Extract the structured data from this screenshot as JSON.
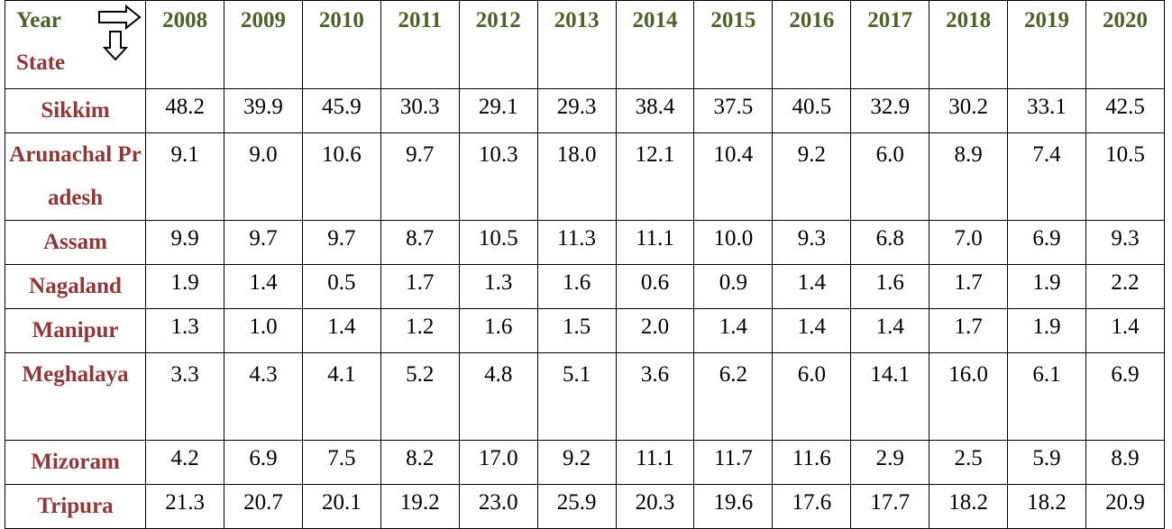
{
  "header": {
    "year_label": "Year",
    "state_label": "State",
    "right_arrow_icon": "right-arrow-icon",
    "down_arrow_icon": "down-arrow-icon"
  },
  "colors": {
    "year_text": "#4e6228",
    "state_text": "#943634",
    "value_text": "#000000"
  },
  "chart_data": {
    "type": "table",
    "title": "",
    "column_header": "Year",
    "row_header": "State",
    "columns": [
      "2008",
      "2009",
      "2010",
      "2011",
      "2012",
      "2013",
      "2014",
      "2015",
      "2016",
      "2017",
      "2018",
      "2019",
      "2020"
    ],
    "rows": [
      {
        "state": "Sikkim",
        "values": [
          "48.2",
          "39.9",
          "45.9",
          "30.3",
          "29.1",
          "29.3",
          "38.4",
          "37.5",
          "40.5",
          "32.9",
          "30.2",
          "33.1",
          "42.5"
        ]
      },
      {
        "state": "Arunachal Pradesh",
        "values": [
          "9.1",
          "9.0",
          "10.6",
          "9.7",
          "10.3",
          "18.0",
          "12.1",
          "10.4",
          "9.2",
          "6.0",
          "8.9",
          "7.4",
          "10.5"
        ]
      },
      {
        "state": "Assam",
        "values": [
          "9.9",
          "9.7",
          "9.7",
          "8.7",
          "10.5",
          "11.3",
          "11.1",
          "10.0",
          "9.3",
          "6.8",
          "7.0",
          "6.9",
          "9.3"
        ]
      },
      {
        "state": "Nagaland",
        "values": [
          "1.9",
          "1.4",
          "0.5",
          "1.7",
          "1.3",
          "1.6",
          "0.6",
          "0.9",
          "1.4",
          "1.6",
          "1.7",
          "1.9",
          "2.2"
        ]
      },
      {
        "state": "Manipur",
        "values": [
          "1.3",
          "1.0",
          "1.4",
          "1.2",
          "1.6",
          "1.5",
          "2.0",
          "1.4",
          "1.4",
          "1.4",
          "1.7",
          "1.9",
          "1.4"
        ]
      },
      {
        "state": "Meghalaya",
        "values": [
          "3.3",
          "4.3",
          "4.1",
          "5.2",
          "4.8",
          "5.1",
          "3.6",
          "6.2",
          "6.0",
          "14.1",
          "16.0",
          "6.1",
          "6.9"
        ]
      },
      {
        "state": "Mizoram",
        "values": [
          "4.2",
          "6.9",
          "7.5",
          "8.2",
          "17.0",
          "9.2",
          "11.1",
          "11.7",
          "11.6",
          "2.9",
          "2.5",
          "5.9",
          "8.9"
        ]
      },
      {
        "state": "Tripura",
        "values": [
          "21.3",
          "20.7",
          "20.1",
          "19.2",
          "23.0",
          "25.9",
          "20.3",
          "19.6",
          "17.6",
          "17.7",
          "18.2",
          "18.2",
          "20.9"
        ]
      }
    ]
  }
}
